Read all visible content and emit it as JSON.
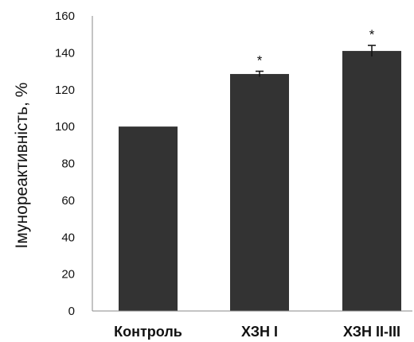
{
  "chart_data": {
    "type": "bar",
    "categories": [
      "Контроль",
      "ХЗН І",
      "ХЗН ІІ-ІІІ"
    ],
    "values": [
      100,
      128.5,
      141
    ],
    "error": [
      0,
      1.5,
      3
    ],
    "annotations": [
      "",
      "*",
      "*"
    ],
    "ylabel": "Імунореактивність, %",
    "xlabel": "",
    "ylim": [
      0,
      160
    ],
    "yticks": [
      0,
      20,
      40,
      60,
      80,
      100,
      120,
      140,
      160
    ],
    "grid": false,
    "bar_color": "#333333"
  }
}
